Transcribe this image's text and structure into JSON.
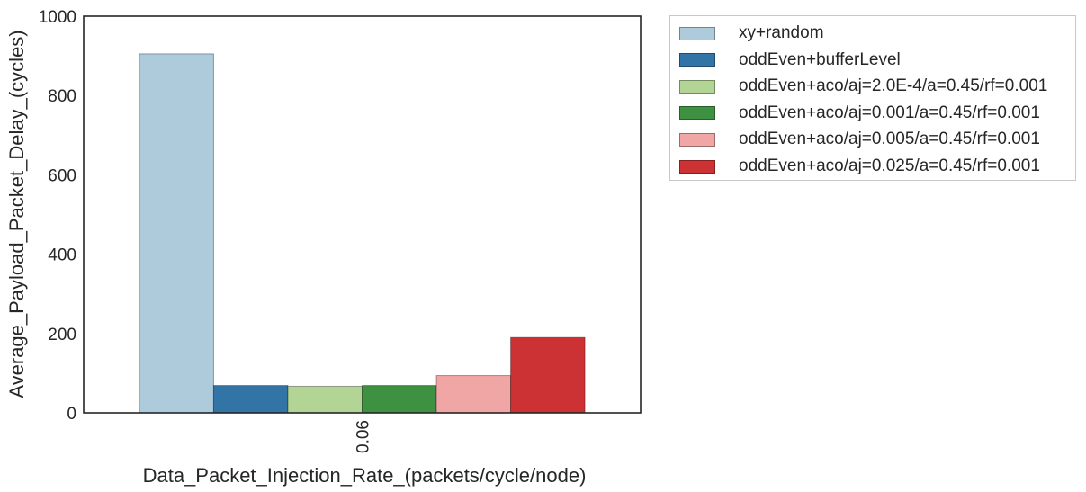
{
  "chart_data": {
    "type": "bar",
    "title": "",
    "xlabel": "Data_Packet_Injection_Rate_(packets/cycle/node)",
    "ylabel": "Average_Payload_Packet_Delay_(cycles)",
    "categories": [
      "0.06"
    ],
    "ylim": [
      0,
      1000
    ],
    "yticks": [
      "0",
      "200",
      "400",
      "600",
      "800",
      "1000"
    ],
    "grid": false,
    "legend_position": "outside-right",
    "series": [
      {
        "name": "xy+random",
        "color": "#aecbdc",
        "values": [
          905
        ]
      },
      {
        "name": "oddEven+bufferLevel",
        "color": "#3274a6",
        "values": [
          69
        ]
      },
      {
        "name": "oddEven+aco/aj=2.0E-4/a=0.45/rf=0.001",
        "color": "#b2d595",
        "values": [
          67
        ]
      },
      {
        "name": "oddEven+aco/aj=0.001/a=0.45/rf=0.001",
        "color": "#3e9140",
        "values": [
          69
        ]
      },
      {
        "name": "oddEven+aco/aj=0.005/a=0.45/rf=0.001",
        "color": "#efa6a4",
        "values": [
          94
        ]
      },
      {
        "name": "oddEven+aco/aj=0.025/a=0.45/rf=0.001",
        "color": "#cc3234",
        "values": [
          190
        ]
      }
    ]
  }
}
